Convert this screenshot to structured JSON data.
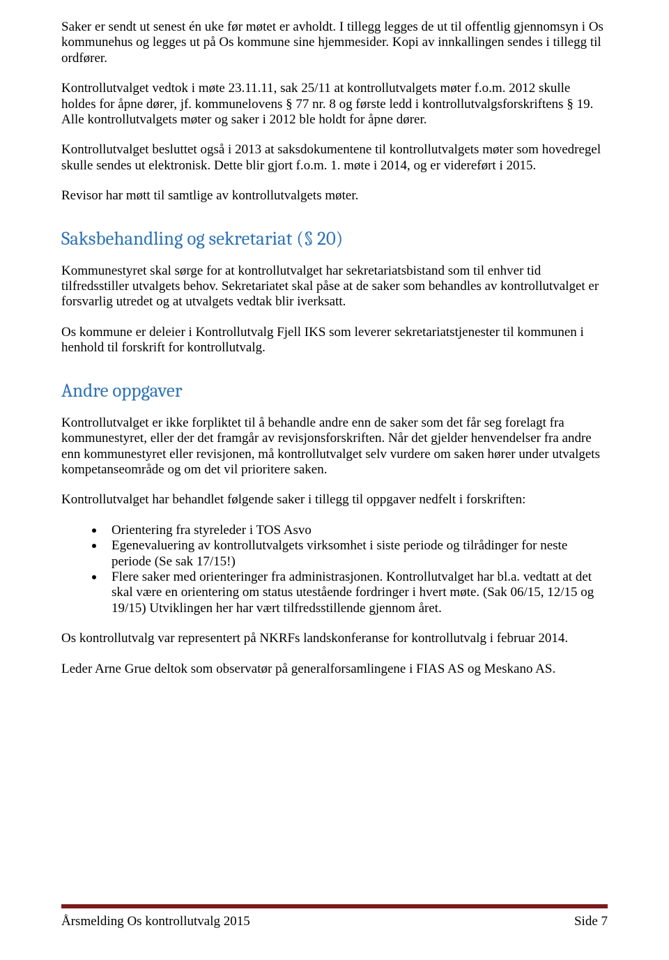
{
  "paragraphs": {
    "p1": "Saker er sendt ut senest én uke før møtet er avholdt. I tillegg legges de ut til offentlig gjennomsyn i Os kommunehus og legges ut på Os kommune sine hjemmesider. Kopi av innkallingen sendes i tillegg til ordfører.",
    "p2": "Kontrollutvalget vedtok i møte 23.11.11, sak 25/11 at kontrollutvalgets møter f.o.m. 2012 skulle holdes for åpne dører, jf. kommunelovens § 77 nr. 8 og første ledd i kontrollutvalgsforskriftens § 19. Alle kontrollutvalgets møter og saker i 2012 ble holdt for åpne dører.",
    "p3": "Kontrollutvalget besluttet også i 2013 at saksdokumentene til kontrollutvalgets møter som hovedregel skulle sendes ut elektronisk. Dette blir gjort f.o.m. 1. møte i 2014, og er videreført i 2015.",
    "p4": "Revisor har møtt til samtlige av kontrollutvalgets møter.",
    "p5": "Kommunestyret skal sørge for at kontrollutvalget har sekretariatsbistand som til enhver tid tilfredsstiller utvalgets behov. Sekretariatet skal påse at de saker som behandles av kontrollutvalget er forsvarlig utredet og at utvalgets vedtak blir iverksatt.",
    "p6": "Os kommune er deleier i Kontrollutvalg Fjell IKS som leverer sekretariatstjenester til kommunen i henhold til forskrift for kontrollutvalg.",
    "p7": "Kontrollutvalget er ikke forpliktet til å behandle andre enn de saker som det får seg forelagt fra kommunestyret, eller der det framgår av revisjonsforskriften. Når det gjelder henvendelser fra andre enn kommunestyret eller revisjonen, må kontrollutvalget selv vurdere om saken hører under utvalgets kompetanseområde og om det vil prioritere saken.",
    "p8": "Kontrollutvalget har behandlet følgende saker i tillegg til oppgaver nedfelt i forskriften:",
    "p9": "Os kontrollutvalg var representert på NKRFs landskonferanse for kontrollutvalg i februar 2014.",
    "p10": "Leder Arne Grue deltok som observatør på generalforsamlingene i FIAS AS og Meskano AS."
  },
  "headings": {
    "h1": "Saksbehandling og sekretariat (§ 20)",
    "h2": "Andre oppgaver"
  },
  "bullets": {
    "b1": "Orientering fra styreleder i TOS Asvo",
    "b2": "Egenevaluering av kontrollutvalgets virksomhet i siste periode og tilrådinger for neste periode (Se sak 17/15!)",
    "b3": "Flere saker med orienteringer fra administrasjonen. Kontrollutvalget har bl.a. vedtatt at det skal være en orientering om status utestående fordringer i hvert møte. (Sak 06/15, 12/15 og 19/15) Utviklingen her har vært tilfredsstillende gjennom året."
  },
  "footer": {
    "left": "Årsmelding Os kontrollutvalg 2015",
    "right": "Side 7"
  },
  "colors": {
    "heading": "#2e74b5",
    "rule": "#7a1a1a",
    "text": "#000000",
    "background": "#ffffff"
  }
}
